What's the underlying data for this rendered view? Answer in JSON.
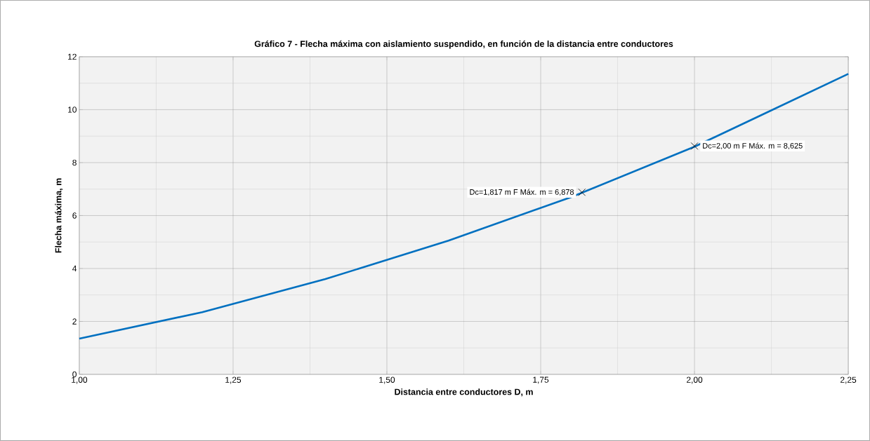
{
  "chart_data": {
    "type": "line",
    "title": "Gráfico 7 - Flecha máxima con aislamiento suspendido, en función de la distancia entre conductores",
    "xlabel": "Distancia entre conductores D, m",
    "ylabel": "Flecha máxima, m",
    "xlim": [
      1,
      2.25
    ],
    "ylim": [
      0,
      12
    ],
    "xticks": [
      {
        "value": 1,
        "label": "1,00"
      },
      {
        "value": 1.25,
        "label": "1,25"
      },
      {
        "value": 1.5,
        "label": "1,50"
      },
      {
        "value": 1.75,
        "label": "1,75"
      },
      {
        "value": 2,
        "label": "2,00"
      },
      {
        "value": 2.25,
        "label": "2,25"
      }
    ],
    "yticks": [
      0,
      2,
      4,
      6,
      8,
      10,
      12
    ],
    "grid": true,
    "series": [
      {
        "color": "#0070c0",
        "x": [
          1.0,
          1.2,
          1.4,
          1.6,
          1.8,
          2.0,
          2.1,
          2.25
        ],
        "values": [
          1.35,
          2.35,
          3.6,
          5.05,
          6.7,
          8.6,
          9.7,
          11.35
        ]
      },
      {
        "type": "scatter",
        "marker": "cross",
        "color": "#000000",
        "x": [
          1.817,
          2.0
        ],
        "values": [
          6.878,
          8.625
        ]
      }
    ],
    "annotations": [
      {
        "text": "Dc=1,817 m F Máx. m = 6,878",
        "x": 1.817,
        "y": 6.878
      },
      {
        "text": "Dc=2,00 m F Máx. m = 8,625",
        "x": 2.0,
        "y": 8.625
      }
    ]
  }
}
